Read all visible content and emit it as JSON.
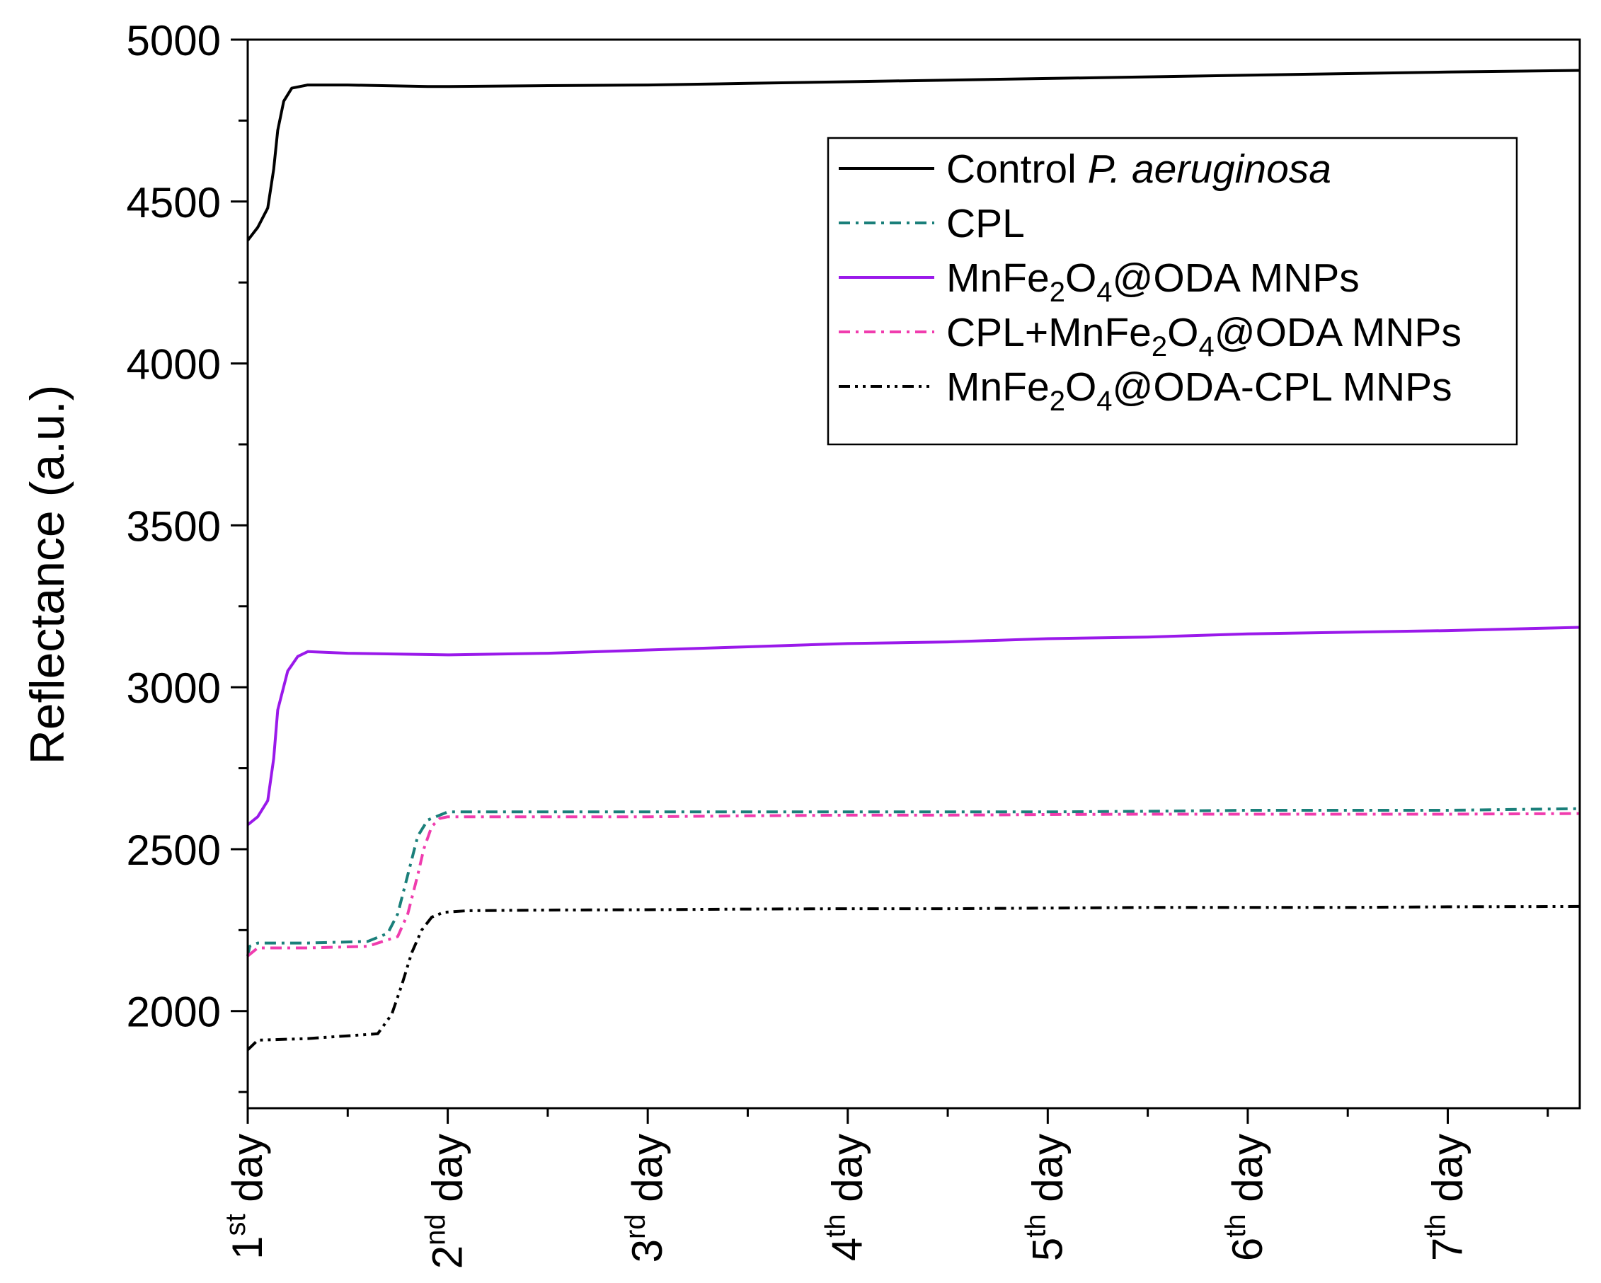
{
  "chart_data": {
    "type": "line",
    "title": "",
    "ylabel": "Reflectance (a.u.)",
    "xlabel": "",
    "ylim": [
      1700,
      5000
    ],
    "xlim": [
      1,
      7.66
    ],
    "yticks": [
      2000,
      2500,
      3000,
      3500,
      4000,
      4500,
      5000
    ],
    "xticks": [
      {
        "x": 1,
        "num": "1",
        "sup": "st",
        "word": " day"
      },
      {
        "x": 2,
        "num": "2",
        "sup": "nd",
        "word": " day"
      },
      {
        "x": 3,
        "num": "3",
        "sup": "rd",
        "word": " day"
      },
      {
        "x": 4,
        "num": "4",
        "sup": "th",
        "word": " day"
      },
      {
        "x": 5,
        "num": "5",
        "sup": "th",
        "word": " day"
      },
      {
        "x": 6,
        "num": "6",
        "sup": "th",
        "word": " day"
      },
      {
        "x": 7,
        "num": "7",
        "sup": "th",
        "word": " day"
      }
    ],
    "legend_position": "top-right",
    "series": [
      {
        "name": "Control P. aeruginosa",
        "legend_parts": [
          {
            "t": "Control "
          },
          {
            "t": "P. aeruginosa",
            "style": "italic"
          }
        ],
        "color": "#000000",
        "dash": "solid",
        "x": [
          1.0,
          1.05,
          1.1,
          1.13,
          1.15,
          1.18,
          1.22,
          1.3,
          1.5,
          1.9,
          2.0,
          2.5,
          3.0,
          3.5,
          4.0,
          4.5,
          5.0,
          5.5,
          6.0,
          6.5,
          7.0,
          7.66
        ],
        "y": [
          4380,
          4420,
          4480,
          4600,
          4720,
          4810,
          4850,
          4860,
          4860,
          4855,
          4855,
          4858,
          4860,
          4865,
          4870,
          4875,
          4880,
          4885,
          4890,
          4895,
          4900,
          4905
        ]
      },
      {
        "name": "CPL",
        "legend_parts": [
          {
            "t": "CPL"
          }
        ],
        "color": "#1a7f7a",
        "dash": "dashdot",
        "x": [
          1.0,
          1.01,
          1.05,
          1.3,
          1.6,
          1.7,
          1.75,
          1.8,
          1.85,
          1.9,
          2.0,
          2.5,
          3.0,
          3.5,
          4.0,
          4.5,
          5.0,
          5.5,
          6.0,
          6.5,
          7.0,
          7.66
        ],
        "y": [
          2170,
          2200,
          2210,
          2210,
          2215,
          2240,
          2300,
          2420,
          2540,
          2590,
          2615,
          2615,
          2615,
          2615,
          2615,
          2615,
          2615,
          2617,
          2620,
          2620,
          2620,
          2625
        ]
      },
      {
        "name": "MnFe2O4@ODA MNPs",
        "legend_parts": [
          {
            "t": "MnFe"
          },
          {
            "t": "2",
            "style": "sub"
          },
          {
            "t": "O"
          },
          {
            "t": "4",
            "style": "sub"
          },
          {
            "t": "@ODA MNPs"
          }
        ],
        "color": "#9a19ea",
        "dash": "solid",
        "x": [
          1.0,
          1.05,
          1.1,
          1.13,
          1.15,
          1.2,
          1.25,
          1.3,
          1.5,
          2.0,
          2.5,
          3.0,
          3.5,
          4.0,
          4.5,
          5.0,
          5.5,
          6.0,
          6.5,
          7.0,
          7.66
        ],
        "y": [
          2575,
          2600,
          2650,
          2780,
          2930,
          3050,
          3095,
          3110,
          3105,
          3100,
          3105,
          3115,
          3125,
          3135,
          3140,
          3150,
          3155,
          3165,
          3170,
          3175,
          3185
        ]
      },
      {
        "name": "CPL+MnFe2O4@ODA MNPs",
        "legend_parts": [
          {
            "t": "CPL+MnFe"
          },
          {
            "t": "2",
            "style": "sub"
          },
          {
            "t": "O"
          },
          {
            "t": "4",
            "style": "sub"
          },
          {
            "t": "@ODA MNPs"
          }
        ],
        "color": "#f03cae",
        "dash": "dashdot",
        "x": [
          1.0,
          1.05,
          1.3,
          1.6,
          1.75,
          1.8,
          1.85,
          1.88,
          1.92,
          1.96,
          2.0,
          2.5,
          3.0,
          3.5,
          4.0,
          4.5,
          5.0,
          5.5,
          6.0,
          6.5,
          7.0,
          7.66
        ],
        "y": [
          2170,
          2195,
          2195,
          2200,
          2230,
          2300,
          2420,
          2500,
          2570,
          2595,
          2600,
          2600,
          2600,
          2603,
          2605,
          2605,
          2607,
          2608,
          2608,
          2608,
          2608,
          2610
        ]
      },
      {
        "name": "MnFe2O4@ODA-CPL MNPs",
        "legend_parts": [
          {
            "t": "MnFe"
          },
          {
            "t": "2",
            "style": "sub"
          },
          {
            "t": "O"
          },
          {
            "t": "4",
            "style": "sub"
          },
          {
            "t": "@ODA-CPL MNPs"
          }
        ],
        "color": "#000000",
        "dash": "dashdotdot",
        "x": [
          1.0,
          1.05,
          1.3,
          1.65,
          1.72,
          1.77,
          1.82,
          1.87,
          1.92,
          1.98,
          2.1,
          2.5,
          3.0,
          3.5,
          4.0,
          4.5,
          5.0,
          5.5,
          6.0,
          6.5,
          7.0,
          7.66
        ],
        "y": [
          1880,
          1910,
          1915,
          1930,
          1990,
          2080,
          2180,
          2250,
          2290,
          2305,
          2310,
          2312,
          2313,
          2315,
          2316,
          2316,
          2318,
          2320,
          2320,
          2320,
          2322,
          2323
        ]
      }
    ]
  }
}
